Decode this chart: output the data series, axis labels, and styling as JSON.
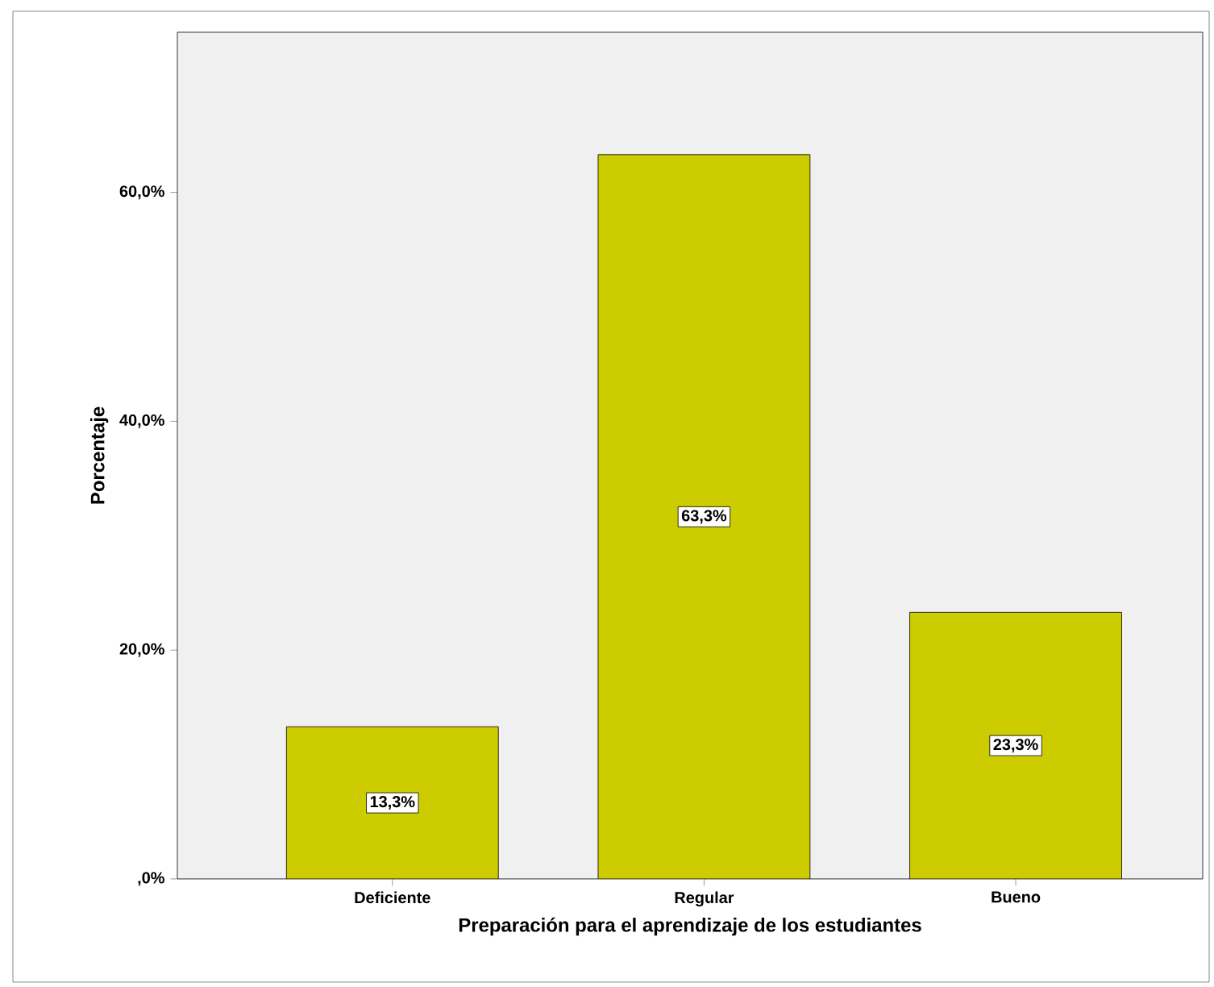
{
  "chart_data": {
    "type": "bar",
    "xlabel": "Preparación para el aprendizaje de los estudiantes",
    "ylabel": "Porcentaje",
    "categories": [
      "Deficiente",
      "Regular",
      "Bueno"
    ],
    "values": [
      13.3,
      63.3,
      23.3
    ],
    "value_labels": [
      "13,3%",
      "63,3%",
      "23,3%"
    ],
    "color": "#cccc00",
    "ylim": [
      0,
      74
    ],
    "yticks": [
      {
        "value": 0,
        "label": ",0%"
      },
      {
        "value": 20,
        "label": "20,0%"
      },
      {
        "value": 40,
        "label": "40,0%"
      },
      {
        "value": 60,
        "label": "60,0%"
      }
    ],
    "grid": false
  }
}
